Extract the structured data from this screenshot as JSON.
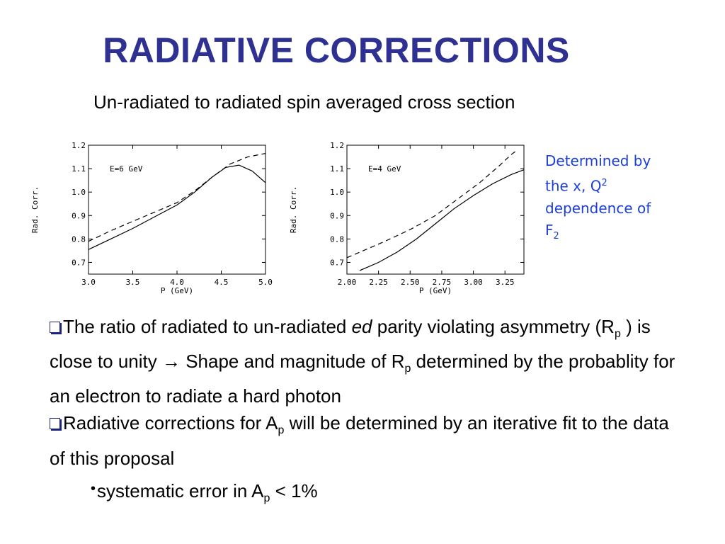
{
  "slide": {
    "title": "RADIATIVE CORRECTIONS",
    "subtitle": "Un-radiated to radiated spin averaged cross section",
    "note": {
      "line1": "Determined by",
      "line2_pre": "the x, Q",
      "line2_sup": "2",
      "line3": "dependence of",
      "line4_main": "F",
      "line4_sub": "2"
    },
    "para1": {
      "a": "The ratio of radiated to un-radiated ",
      "em": "ed",
      "b": " parity violating asymmetry (R",
      "sub1": "p",
      "c": " ) is close to unity → Shape and magnitude of R",
      "sub2": "p",
      "d": " determined by the probablity for an electron to radiate a hard photon"
    },
    "para2": {
      "a": "Radiative corrections for A",
      "sub": "p",
      "b": " will be determined by an iterative fit to the data of this proposal"
    },
    "bullet": {
      "a": "systematic error in A",
      "sub": "p",
      "b": " < 1%"
    }
  },
  "chart_data": [
    {
      "type": "line",
      "annotation": "E=6 GeV",
      "xlabel": "P (GeV)",
      "ylabel": "Rad. Corr.",
      "xlim": [
        3.0,
        5.0
      ],
      "ylim": [
        0.65,
        1.2
      ],
      "xticks": [
        3.0,
        3.5,
        4.0,
        4.5,
        5.0
      ],
      "xtick_labels": [
        "3.0",
        "3.5",
        "4.0",
        "4.5",
        "5.0"
      ],
      "yticks": [
        0.7,
        0.8,
        0.9,
        1.0,
        1.1,
        1.2
      ],
      "ytick_labels": [
        "0.7",
        "0.8",
        "0.9",
        "1.0",
        "1.1",
        "1.2"
      ],
      "series": [
        {
          "style": "solid",
          "x": [
            3.0,
            3.25,
            3.5,
            3.75,
            4.0,
            4.2,
            4.4,
            4.55,
            4.7,
            4.85,
            5.0
          ],
          "y": [
            0.755,
            0.8,
            0.845,
            0.895,
            0.945,
            1.0,
            1.065,
            1.105,
            1.115,
            1.09,
            1.04
          ]
        },
        {
          "style": "dashed",
          "x": [
            3.0,
            3.25,
            3.5,
            3.75,
            4.0,
            4.2,
            4.4,
            4.6,
            4.8,
            5.0
          ],
          "y": [
            0.79,
            0.835,
            0.875,
            0.915,
            0.955,
            1.005,
            1.065,
            1.12,
            1.15,
            1.165
          ]
        }
      ]
    },
    {
      "type": "line",
      "annotation": "E=4 GeV",
      "xlabel": "P (GeV)",
      "ylabel": "Rad. Corr.",
      "xlim": [
        2.0,
        3.4
      ],
      "ylim": [
        0.65,
        1.2
      ],
      "xticks": [
        2.0,
        2.25,
        2.5,
        2.75,
        3.0,
        3.25
      ],
      "xtick_labels": [
        "2.00",
        "2.25",
        "2.50",
        "2.75",
        "3.00",
        "3.25"
      ],
      "yticks": [
        0.7,
        0.8,
        0.9,
        1.0,
        1.1,
        1.2
      ],
      "ytick_labels": [
        "0.7",
        "0.8",
        "0.9",
        "1.0",
        "1.1",
        "1.2"
      ],
      "series": [
        {
          "style": "solid",
          "x": [
            2.1,
            2.25,
            2.4,
            2.55,
            2.7,
            2.85,
            3.0,
            3.15,
            3.3,
            3.4
          ],
          "y": [
            0.665,
            0.7,
            0.745,
            0.8,
            0.865,
            0.93,
            0.985,
            1.035,
            1.075,
            1.095
          ]
        },
        {
          "style": "dashed",
          "x": [
            2.0,
            2.15,
            2.3,
            2.5,
            2.7,
            2.9,
            3.05,
            3.2,
            3.3,
            3.35
          ],
          "y": [
            0.72,
            0.755,
            0.79,
            0.84,
            0.9,
            0.98,
            1.04,
            1.11,
            1.16,
            1.18
          ]
        }
      ]
    }
  ]
}
